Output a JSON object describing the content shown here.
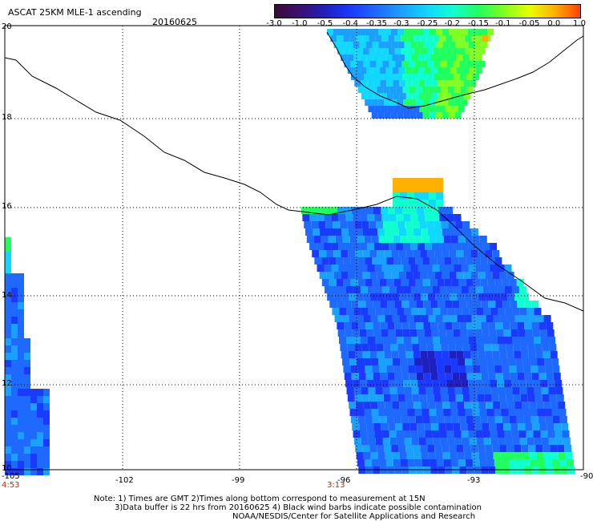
{
  "header": {
    "title": "ASCAT 25KM MLE-1 ascending",
    "date": "20160625"
  },
  "colorbar": {
    "ticks": [
      "-3.0",
      "-1.0",
      "-0.5",
      "-0.4",
      "-0.35",
      "-0.3",
      "-0.25",
      "-0.2",
      "-0.15",
      "-0.1",
      "-0.05",
      "0.0",
      "1.0"
    ],
    "colors": [
      "#3a0a3a",
      "#3a1070",
      "#2020c0",
      "#1a3aff",
      "#1e6aff",
      "#1aa0ff",
      "#10d8ff",
      "#10ffd0",
      "#20ff60",
      "#80ff20",
      "#e8ff00",
      "#ffb000",
      "#ff4000"
    ]
  },
  "axes": {
    "lon_labels": [
      "-105",
      "-102",
      "-99",
      "-96",
      "-93",
      "-90"
    ],
    "lat_labels": [
      "20",
      "18",
      "16",
      "14",
      "12",
      "10"
    ]
  },
  "time_labels": {
    "left": "4:53",
    "middle": "3:13"
  },
  "notes": {
    "line1": "Note: 1) Times are GMT 2)Times along bottom correspond to measurement at 15N",
    "line2": "3)Data buffer is 22 hrs from 20160625 4) Black wind barbs indicate possible contamination",
    "line3": "NOAA/NESDIS/Center for Satellite Applications and Research"
  }
}
